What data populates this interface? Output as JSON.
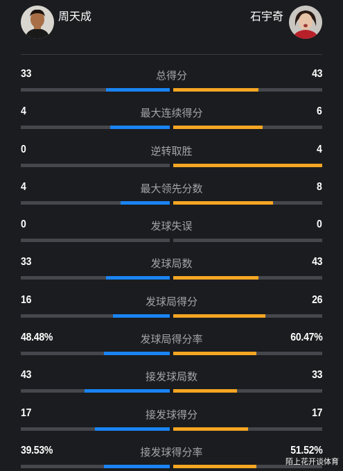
{
  "players": {
    "left": {
      "name": "周天成",
      "avatar_icon": "player-avatar-icon"
    },
    "right": {
      "name": "石宇奇",
      "avatar_icon": "player-avatar-icon"
    }
  },
  "colors": {
    "left_bar": "#1a84f3",
    "right_bar": "#f5a623",
    "track": "#46474c",
    "background": "#1b1c1f"
  },
  "stats": [
    {
      "label": "总得分",
      "left": "33",
      "right": "43",
      "left_frac": 0.43,
      "right_frac": 0.57
    },
    {
      "label": "最大连续得分",
      "left": "4",
      "right": "6",
      "left_frac": 0.4,
      "right_frac": 0.6
    },
    {
      "label": "逆转取胜",
      "left": "0",
      "right": "4",
      "left_frac": 0.0,
      "right_frac": 1.0
    },
    {
      "label": "最大领先分数",
      "left": "4",
      "right": "8",
      "left_frac": 0.33,
      "right_frac": 0.67
    },
    {
      "label": "发球失误",
      "left": "0",
      "right": "0",
      "left_frac": 0.0,
      "right_frac": 0.0
    },
    {
      "label": "发球局数",
      "left": "33",
      "right": "43",
      "left_frac": 0.43,
      "right_frac": 0.57
    },
    {
      "label": "发球局得分",
      "left": "16",
      "right": "26",
      "left_frac": 0.38,
      "right_frac": 0.62
    },
    {
      "label": "发球局得分率",
      "left": "48.48%",
      "right": "60.47%",
      "left_frac": 0.44,
      "right_frac": 0.56
    },
    {
      "label": "接发球局数",
      "left": "43",
      "right": "33",
      "left_frac": 0.57,
      "right_frac": 0.43
    },
    {
      "label": "接发球得分",
      "left": "17",
      "right": "17",
      "left_frac": 0.5,
      "right_frac": 0.5
    },
    {
      "label": "接发球得分率",
      "left": "39.53%",
      "right": "51.52%",
      "left_frac": 0.44,
      "right_frac": 0.56
    }
  ],
  "watermark": "陌上花开谈体育"
}
